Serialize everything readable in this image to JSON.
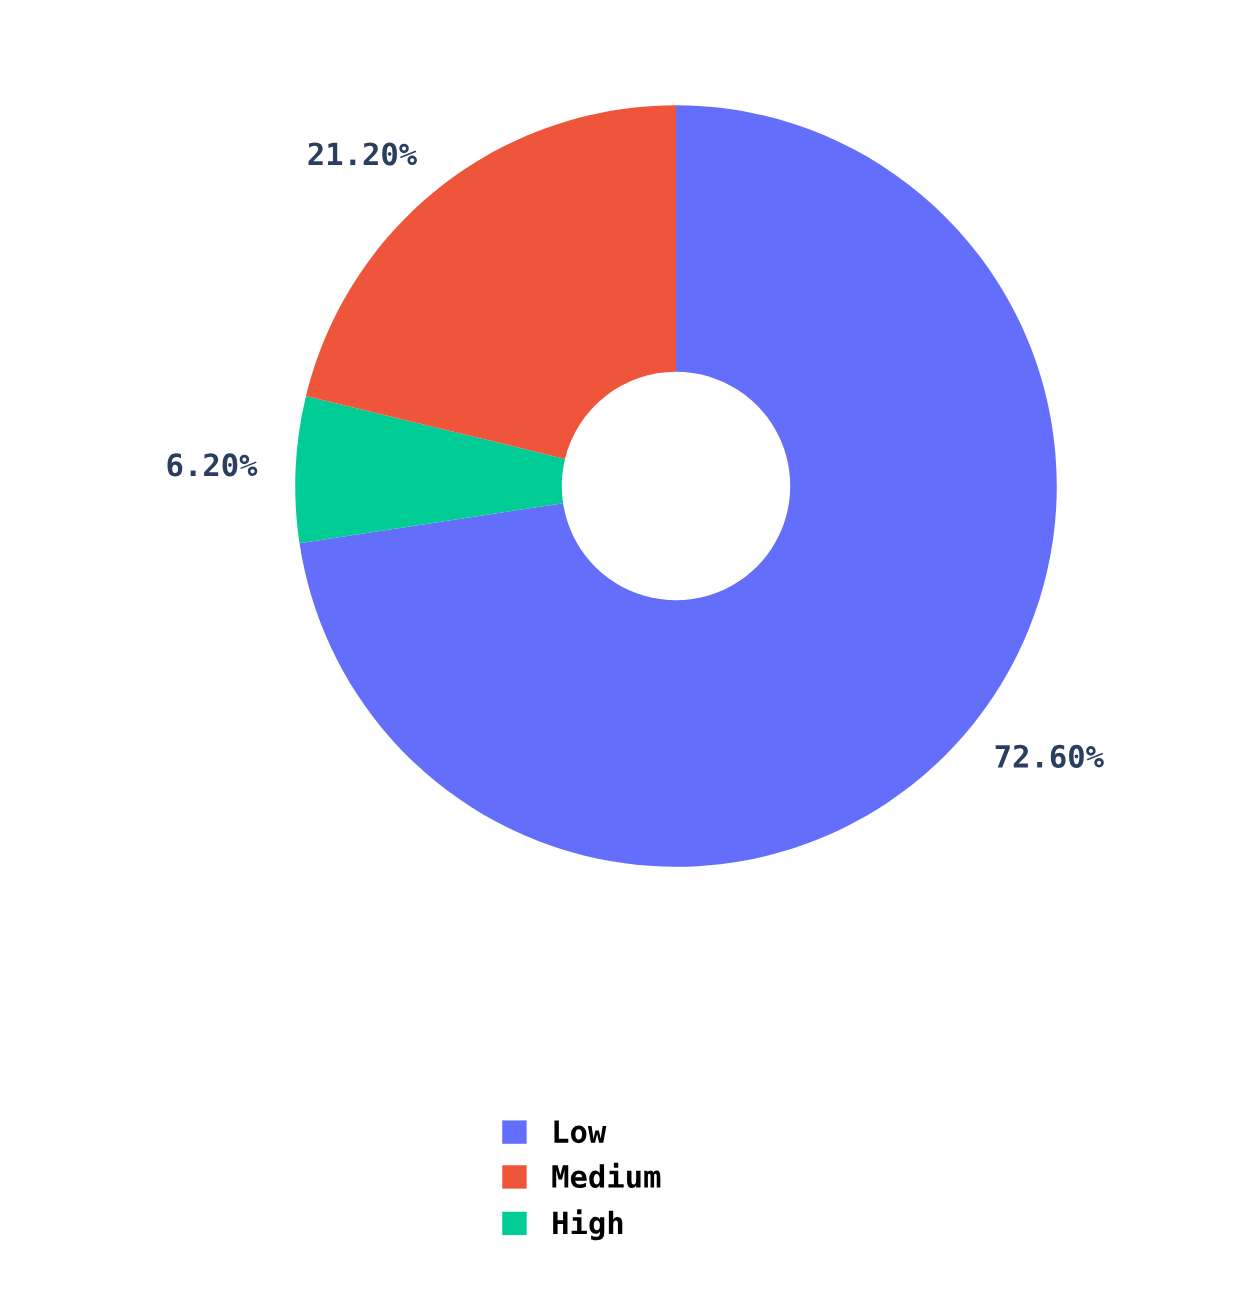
{
  "chart_data": {
    "type": "donut",
    "categories": [
      "Low",
      "Medium",
      "High"
    ],
    "values": [
      72.6,
      21.2,
      6.2
    ],
    "colors": [
      "#636efa",
      "#ef553b",
      "#00cc96"
    ],
    "value_labels": [
      "72.60%",
      "21.20%",
      "6.20%"
    ],
    "legend": "bottom"
  }
}
